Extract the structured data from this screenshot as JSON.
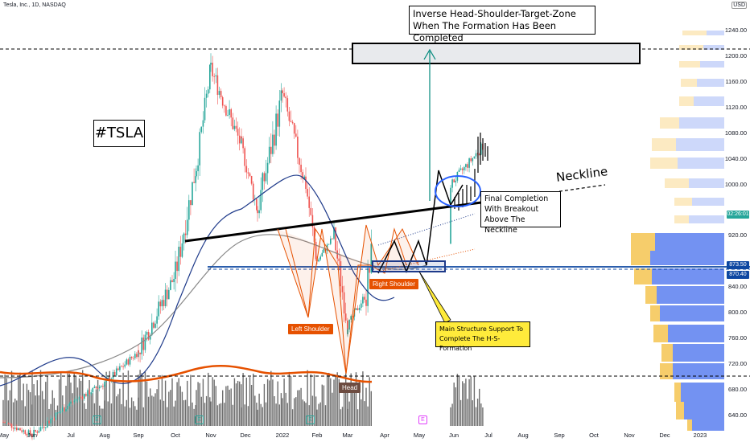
{
  "header": {
    "title": "Tesla, Inc., 1D, NASDAQ"
  },
  "currency": "USD",
  "annotations": {
    "target_title_1": "Inverse Head-Shoulder-Target-Zone",
    "target_title_2": "When The Formation Has Been Completed",
    "ticker": "#TSLA",
    "neckline": "Neckline",
    "completion_1": "Final Completion",
    "completion_2": "With Breakout",
    "completion_3": "Above The Neckline",
    "support_1": "Main Structure Support To",
    "support_2": "Complete The H-S-Formation",
    "left_shoulder": "Left Shoulder",
    "right_shoulder": "Right Shoulder",
    "head": "Head"
  },
  "price_tags": {
    "current": "02:26:01",
    "level_1": "873.50",
    "level_2": "870.40"
  },
  "colors": {
    "up": "#26a69a",
    "down": "#ef5350",
    "ma_short": "#1e3a8a",
    "ma_long": "#808080",
    "volume_ma": "#e65100",
    "neckline": "#000000",
    "support": "#0d47a1",
    "target_arrow": "#00897b",
    "pattern": "#e65100",
    "profile_buy": "#f5c451",
    "profile_sell": "#5b7ff0"
  },
  "chart_data": {
    "type": "candlestick",
    "title": "Tesla, Inc., 1D, NASDAQ",
    "ylim": [
      620,
      1250
    ],
    "y_ticks": [
      "1240.00",
      "1200.00",
      "1160.00",
      "1120.00",
      "1080.00",
      "1040.00",
      "1000.00",
      "920.00",
      "840.00",
      "800.00",
      "760.00",
      "720.00",
      "680.00",
      "640.00"
    ],
    "x_ticks": [
      "May",
      "Jun",
      "Jul",
      "Aug",
      "Sep",
      "Oct",
      "Nov",
      "Dec",
      "2022",
      "Feb",
      "Mar",
      "Apr",
      "May",
      "Jun",
      "Jul",
      "Aug",
      "Sep",
      "Oct",
      "Nov",
      "Dec",
      "2023"
    ],
    "price_path": [
      {
        "x": "May",
        "y": 630
      },
      {
        "x": "Jun",
        "y": 610
      },
      {
        "x": "Jul",
        "y": 660
      },
      {
        "x": "Aug",
        "y": 690
      },
      {
        "x": "Sep",
        "y": 740
      },
      {
        "x": "Oct",
        "y": 860
      },
      {
        "x": "Oct-end",
        "y": 1030
      },
      {
        "x": "Nov",
        "y": 1180
      },
      {
        "x": "Nov-mid",
        "y": 1060
      },
      {
        "x": "Dec",
        "y": 960
      },
      {
        "x": "2022",
        "y": 1140
      },
      {
        "x": "Jan-mid",
        "y": 1000
      },
      {
        "x": "Feb",
        "y": 880
      },
      {
        "x": "Feb-mid",
        "y": 920
      },
      {
        "x": "Mar",
        "y": 780
      },
      {
        "x": "Mar-mid",
        "y": 830
      },
      {
        "x": "Apr",
        "y": 1050
      },
      {
        "x": "May",
        "y": 870
      },
      {
        "x": "Jun",
        "y": 1000
      },
      {
        "x": "Jun-end",
        "y": 1060
      }
    ],
    "levels": {
      "target_zone": [
        1195,
        1215
      ],
      "dashed_top": 1210,
      "support": 872,
      "dashed_bottom": 700
    },
    "pattern_points": {
      "left_shoulder": 800,
      "head": 700,
      "right_shoulder": 860
    },
    "legend": "none",
    "grid": false
  }
}
